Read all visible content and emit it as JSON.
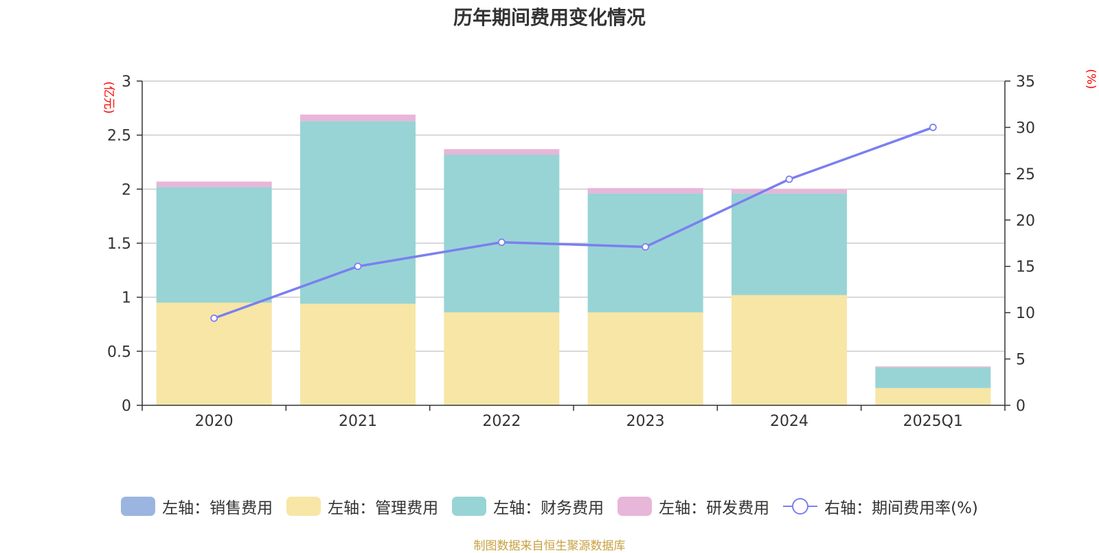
{
  "chart_data": {
    "type": "bar",
    "title": "历年期间费用变化情况",
    "categories": [
      "2020",
      "2021",
      "2022",
      "2023",
      "2024",
      "2025Q1"
    ],
    "left_axis": {
      "unit_label": "(亿元)",
      "ylim": [
        0,
        3
      ],
      "ticks": [
        "0",
        "0.5",
        "1",
        "1.5",
        "2",
        "2.5",
        "3"
      ]
    },
    "right_axis": {
      "unit_label": "(%)",
      "ylim": [
        0,
        35
      ],
      "ticks": [
        "0",
        "5",
        "10",
        "15",
        "20",
        "25",
        "30",
        "35"
      ]
    },
    "series": [
      {
        "name": "左轴：销售费用",
        "kind": "bar",
        "axis": "left",
        "color": "#9bb5e0",
        "values": [
          0,
          0,
          0,
          0,
          0,
          0
        ]
      },
      {
        "name": "左轴：管理费用",
        "kind": "bar",
        "axis": "left",
        "color": "#f7e6a6",
        "values": [
          0.95,
          0.94,
          0.86,
          0.86,
          1.02,
          0.16
        ]
      },
      {
        "name": "左轴：财务费用",
        "kind": "bar",
        "axis": "left",
        "color": "#98d4d5",
        "values": [
          1.07,
          1.69,
          1.46,
          1.1,
          0.94,
          0.19
        ]
      },
      {
        "name": "左轴：研发费用",
        "kind": "bar",
        "axis": "left",
        "color": "#e8b6d9",
        "values": [
          0.05,
          0.06,
          0.05,
          0.05,
          0.04,
          0.01
        ]
      },
      {
        "name": "右轴：期间费用率(%)",
        "kind": "line",
        "axis": "right",
        "color": "#7b7ff0",
        "values": [
          9.4,
          15.0,
          17.6,
          17.1,
          24.4,
          30.0
        ]
      }
    ],
    "grid": true,
    "legend_position": "bottom"
  },
  "footer": {
    "source": "制图数据来自恒生聚源数据库"
  }
}
